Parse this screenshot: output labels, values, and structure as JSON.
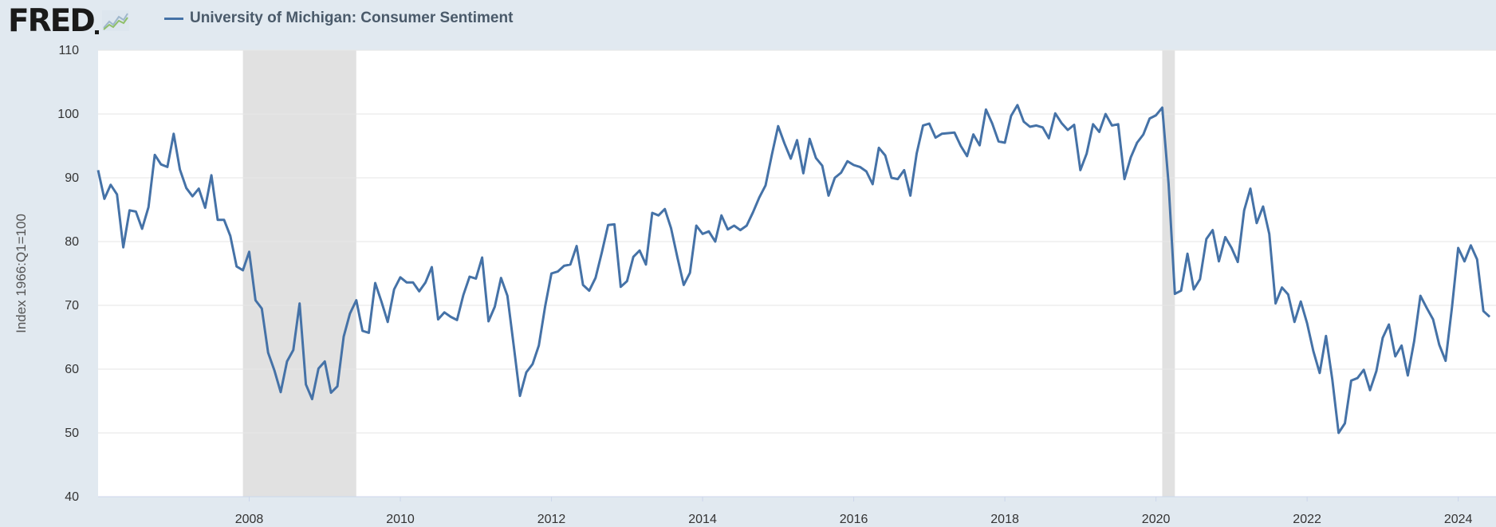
{
  "header": {
    "logo_text": "FRED",
    "legend_label": "University of Michigan: Consumer Sentiment"
  },
  "colors": {
    "series": "#4572a7",
    "recession": "#e1e1e1",
    "background": "#e1e9f0",
    "plot": "#ffffff"
  },
  "chart_data": {
    "type": "line",
    "ylabel": "Index 1966:Q1=100",
    "ylim": [
      40,
      110
    ],
    "yticks": [
      40,
      50,
      60,
      70,
      80,
      90,
      100,
      110
    ],
    "xlim": [
      2006.0,
      2024.5
    ],
    "xticks": [
      2008,
      2010,
      2012,
      2014,
      2016,
      2018,
      2020,
      2022,
      2024
    ],
    "grid": true,
    "legend": "top-left",
    "recessions": [
      [
        2007.917,
        2009.417
      ],
      [
        2020.083,
        2020.25
      ]
    ],
    "series": [
      {
        "name": "University of Michigan: Consumer Sentiment",
        "x": [
          2006.0,
          2006.083,
          2006.167,
          2006.25,
          2006.333,
          2006.417,
          2006.5,
          2006.583,
          2006.667,
          2006.75,
          2006.833,
          2006.917,
          2007.0,
          2007.083,
          2007.167,
          2007.25,
          2007.333,
          2007.417,
          2007.5,
          2007.583,
          2007.667,
          2007.75,
          2007.833,
          2007.917,
          2008.0,
          2008.083,
          2008.167,
          2008.25,
          2008.333,
          2008.417,
          2008.5,
          2008.583,
          2008.667,
          2008.75,
          2008.833,
          2008.917,
          2009.0,
          2009.083,
          2009.167,
          2009.25,
          2009.333,
          2009.417,
          2009.5,
          2009.583,
          2009.667,
          2009.75,
          2009.833,
          2009.917,
          2010.0,
          2010.083,
          2010.167,
          2010.25,
          2010.333,
          2010.417,
          2010.5,
          2010.583,
          2010.667,
          2010.75,
          2010.833,
          2010.917,
          2011.0,
          2011.083,
          2011.167,
          2011.25,
          2011.333,
          2011.417,
          2011.5,
          2011.583,
          2011.667,
          2011.75,
          2011.833,
          2011.917,
          2012.0,
          2012.083,
          2012.167,
          2012.25,
          2012.333,
          2012.417,
          2012.5,
          2012.583,
          2012.667,
          2012.75,
          2012.833,
          2012.917,
          2013.0,
          2013.083,
          2013.167,
          2013.25,
          2013.333,
          2013.417,
          2013.5,
          2013.583,
          2013.667,
          2013.75,
          2013.833,
          2013.917,
          2014.0,
          2014.083,
          2014.167,
          2014.25,
          2014.333,
          2014.417,
          2014.5,
          2014.583,
          2014.667,
          2014.75,
          2014.833,
          2014.917,
          2015.0,
          2015.083,
          2015.167,
          2015.25,
          2015.333,
          2015.417,
          2015.5,
          2015.583,
          2015.667,
          2015.75,
          2015.833,
          2015.917,
          2016.0,
          2016.083,
          2016.167,
          2016.25,
          2016.333,
          2016.417,
          2016.5,
          2016.583,
          2016.667,
          2016.75,
          2016.833,
          2016.917,
          2017.0,
          2017.083,
          2017.167,
          2017.25,
          2017.333,
          2017.417,
          2017.5,
          2017.583,
          2017.667,
          2017.75,
          2017.833,
          2017.917,
          2018.0,
          2018.083,
          2018.167,
          2018.25,
          2018.333,
          2018.417,
          2018.5,
          2018.583,
          2018.667,
          2018.75,
          2018.833,
          2018.917,
          2019.0,
          2019.083,
          2019.167,
          2019.25,
          2019.333,
          2019.417,
          2019.5,
          2019.583,
          2019.667,
          2019.75,
          2019.833,
          2019.917,
          2020.0,
          2020.083,
          2020.167,
          2020.25,
          2020.333,
          2020.417,
          2020.5,
          2020.583,
          2020.667,
          2020.75,
          2020.833,
          2020.917,
          2021.0,
          2021.083,
          2021.167,
          2021.25,
          2021.333,
          2021.417,
          2021.5,
          2021.583,
          2021.667,
          2021.75,
          2021.833,
          2021.917,
          2022.0,
          2022.083,
          2022.167,
          2022.25,
          2022.333,
          2022.417,
          2022.5,
          2022.583,
          2022.667,
          2022.75,
          2022.833,
          2022.917,
          2023.0,
          2023.083,
          2023.167,
          2023.25,
          2023.333,
          2023.417,
          2023.5,
          2023.583,
          2023.667,
          2023.75,
          2023.833,
          2023.917,
          2024.0,
          2024.083,
          2024.167,
          2024.25,
          2024.333,
          2024.417
        ],
        "values": [
          91.2,
          86.7,
          88.9,
          87.4,
          79.1,
          84.9,
          84.7,
          82.0,
          85.4,
          93.6,
          92.1,
          91.7,
          96.9,
          91.3,
          88.4,
          87.1,
          88.3,
          85.3,
          90.4,
          83.4,
          83.4,
          80.9,
          76.1,
          75.5,
          78.4,
          70.8,
          69.5,
          62.6,
          59.8,
          56.4,
          61.2,
          63.0,
          70.3,
          57.6,
          55.3,
          60.1,
          61.2,
          56.3,
          57.3,
          65.1,
          68.7,
          70.8,
          66.0,
          65.7,
          73.5,
          70.6,
          67.4,
          72.5,
          74.4,
          73.6,
          73.6,
          72.2,
          73.6,
          76.0,
          67.8,
          68.9,
          68.2,
          67.7,
          71.6,
          74.5,
          74.2,
          77.5,
          67.5,
          69.8,
          74.3,
          71.5,
          63.7,
          55.8,
          59.5,
          60.8,
          63.7,
          69.9,
          75.0,
          75.3,
          76.2,
          76.4,
          79.3,
          73.2,
          72.3,
          74.3,
          78.3,
          82.6,
          82.7,
          72.9,
          73.8,
          77.6,
          78.6,
          76.4,
          84.5,
          84.1,
          85.1,
          82.1,
          77.5,
          73.2,
          75.1,
          82.5,
          81.2,
          81.6,
          80.0,
          84.1,
          81.9,
          82.5,
          81.8,
          82.5,
          84.6,
          86.9,
          88.8,
          93.6,
          98.1,
          95.4,
          93.0,
          95.9,
          90.7,
          96.1,
          93.1,
          91.9,
          87.2,
          90.0,
          90.8,
          92.6,
          92.0,
          91.7,
          91.0,
          89.0,
          94.7,
          93.5,
          90.0,
          89.8,
          91.2,
          87.2,
          93.8,
          98.2,
          98.5,
          96.3,
          96.9,
          97.0,
          97.1,
          95.0,
          93.4,
          96.8,
          95.1,
          100.7,
          98.5,
          95.7,
          95.5,
          99.7,
          101.4,
          98.8,
          98.0,
          98.2,
          97.9,
          96.2,
          100.1,
          98.6,
          97.5,
          98.3,
          91.2,
          93.8,
          98.4,
          97.2,
          100.0,
          98.2,
          98.4,
          89.8,
          93.2,
          95.5,
          96.8,
          99.3,
          99.8,
          101.0,
          89.1,
          71.8,
          72.3,
          78.1,
          72.5,
          74.1,
          80.4,
          81.8,
          76.9,
          80.7,
          79.0,
          76.8,
          84.9,
          88.3,
          82.9,
          85.5,
          81.2,
          70.3,
          72.8,
          71.7,
          67.4,
          70.6,
          67.2,
          62.8,
          59.4,
          65.2,
          58.4,
          50.0,
          51.5,
          58.2,
          58.6,
          59.9,
          56.7,
          59.7,
          64.9,
          67.0,
          62.0,
          63.7,
          59.0,
          64.4,
          71.5,
          69.6,
          67.8,
          63.8,
          61.3,
          69.7,
          79.0,
          76.9,
          79.4,
          77.2,
          69.1,
          68.2
        ]
      }
    ]
  }
}
